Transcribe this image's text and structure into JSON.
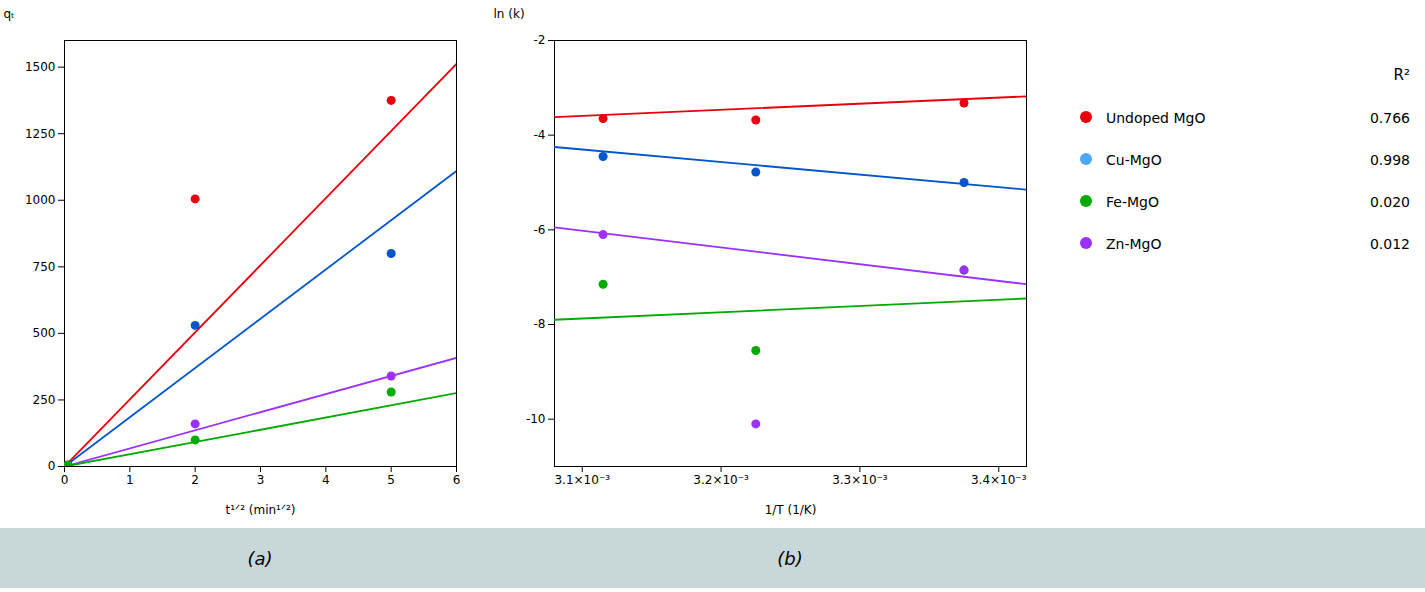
{
  "chart_data": [
    {
      "type": "scatter",
      "caption": "(a)",
      "x_label": "t¹ᐟ² (min¹ᐟ²)",
      "y_label": "qₜ",
      "xlim": [
        0,
        6
      ],
      "ylim": [
        0,
        1600
      ],
      "xticks": [
        0,
        1,
        2,
        3,
        4,
        5,
        6
      ],
      "yticks": [
        0,
        250,
        500,
        750,
        1000,
        1250,
        1500
      ],
      "series": [
        {
          "name": "Undoped MgO",
          "type": "line",
          "color": "#e8000d",
          "x": [
            0,
            6
          ],
          "values": [
            0,
            1512
          ]
        },
        {
          "name": "Cu-MgO",
          "type": "line",
          "color": "#0055cc",
          "x": [
            0,
            6
          ],
          "values": [
            0,
            1110
          ]
        },
        {
          "name": "Zn-MgO",
          "type": "line",
          "color": "#9b30ff",
          "x": [
            0,
            6
          ],
          "values": [
            0,
            408
          ]
        },
        {
          "name": "Fe-MgO",
          "type": "line",
          "color": "#00aa00",
          "x": [
            0,
            6
          ],
          "values": [
            0,
            276
          ]
        },
        {
          "name": "Undoped MgO",
          "type": "scatter",
          "color": "#e8000d",
          "x": [
            0.05,
            2.0,
            5.0
          ],
          "values": [
            5,
            1005,
            1375
          ]
        },
        {
          "name": "Cu-MgO",
          "type": "scatter",
          "color": "#0055cc",
          "x": [
            0.05,
            2.0,
            5.0
          ],
          "values": [
            5,
            530,
            800
          ]
        },
        {
          "name": "Zn-MgO",
          "type": "scatter",
          "color": "#9b30ff",
          "x": [
            0.05,
            2.0,
            5.0
          ],
          "values": [
            5,
            160,
            340
          ]
        },
        {
          "name": "Fe-MgO",
          "type": "scatter",
          "color": "#00aa00",
          "x": [
            0.05,
            2.0,
            5.0
          ],
          "values": [
            5,
            100,
            280
          ]
        }
      ]
    },
    {
      "type": "scatter",
      "caption": "(b)",
      "x_label": "1/T (1/K)",
      "y_label": "ln (k)",
      "xlim": [
        0.00308,
        0.00342
      ],
      "ylim": [
        -11,
        -2
      ],
      "xticks": [
        {
          "value": 0.0031,
          "label": "3.1×10⁻³"
        },
        {
          "value": 0.0032,
          "label": "3.2×10⁻³"
        },
        {
          "value": 0.0033,
          "label": "3.3×10⁻³"
        },
        {
          "value": 0.0034,
          "label": "3.4×10⁻³"
        }
      ],
      "yticks": [
        -10,
        -8,
        -6,
        -4,
        -2
      ],
      "series": [
        {
          "name": "Undoped MgO",
          "type": "line",
          "color": "#e8000d",
          "x": [
            0.00308,
            0.00342
          ],
          "values": [
            -3.62,
            -3.18
          ]
        },
        {
          "name": "Cu-MgO",
          "type": "line",
          "color": "#0055cc",
          "x": [
            0.00308,
            0.00342
          ],
          "values": [
            -4.25,
            -5.15
          ]
        },
        {
          "name": "Fe-MgO",
          "type": "line",
          "color": "#00aa00",
          "x": [
            0.00308,
            0.00342
          ],
          "values": [
            -7.9,
            -7.45
          ]
        },
        {
          "name": "Zn-MgO",
          "type": "line",
          "color": "#9b30ff",
          "x": [
            0.00308,
            0.00342
          ],
          "values": [
            -5.95,
            -7.15
          ]
        },
        {
          "name": "Undoped MgO",
          "type": "scatter",
          "color": "#e8000d",
          "x": [
            0.003115,
            0.003225,
            0.003375
          ],
          "values": [
            -3.65,
            -3.68,
            -3.32
          ]
        },
        {
          "name": "Cu-MgO",
          "type": "scatter",
          "color": "#0055cc",
          "x": [
            0.003115,
            0.003225,
            0.003375
          ],
          "values": [
            -4.45,
            -4.78,
            -5.0
          ]
        },
        {
          "name": "Fe-MgO",
          "type": "scatter",
          "color": "#00aa00",
          "x": [
            0.003115,
            0.003225,
            0.003375
          ],
          "values": [
            -7.15,
            -8.55,
            -6.85
          ]
        },
        {
          "name": "Zn-MgO",
          "type": "scatter",
          "color": "#9b30ff",
          "x": [
            0.003115,
            0.003225,
            0.003375
          ],
          "values": [
            -6.1,
            -10.1,
            -6.85
          ]
        }
      ]
    },
    {
      "type": "legend",
      "header": "R²",
      "entries": [
        {
          "label": "Undoped MgO",
          "color": "#e8000d",
          "r2": "0.766"
        },
        {
          "label": "Cu-MgO",
          "color": "#4da6ff",
          "r2": "0.998"
        },
        {
          "label": "Fe-MgO",
          "color": "#00aa00",
          "r2": "0.020"
        },
        {
          "label": "Zn-MgO",
          "color": "#9b30ff",
          "r2": "0.012"
        }
      ]
    }
  ]
}
